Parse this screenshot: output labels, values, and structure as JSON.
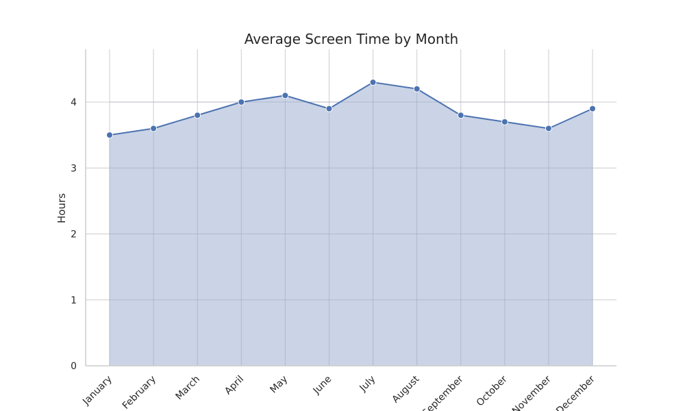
{
  "chart_data": {
    "type": "area",
    "title": "Average Screen Time by Month",
    "xlabel": "",
    "ylabel": "Hours",
    "categories": [
      "January",
      "February",
      "March",
      "April",
      "May",
      "June",
      "July",
      "August",
      "September",
      "October",
      "November",
      "December"
    ],
    "series": [
      {
        "name": "Average Screen Time",
        "values": [
          3.5,
          3.6,
          3.8,
          4.0,
          4.1,
          3.9,
          4.3,
          4.2,
          3.8,
          3.7,
          3.6,
          3.9
        ]
      }
    ],
    "ylim": [
      0,
      4.8
    ],
    "yticks": [
      0,
      1,
      2,
      3,
      4
    ],
    "grid": true,
    "colors": {
      "line": "#4c72b0",
      "fill": "#c8d3e5",
      "grid": "#cccccc",
      "axis": "#cccccc",
      "marker_edge": "#ffffff"
    }
  }
}
